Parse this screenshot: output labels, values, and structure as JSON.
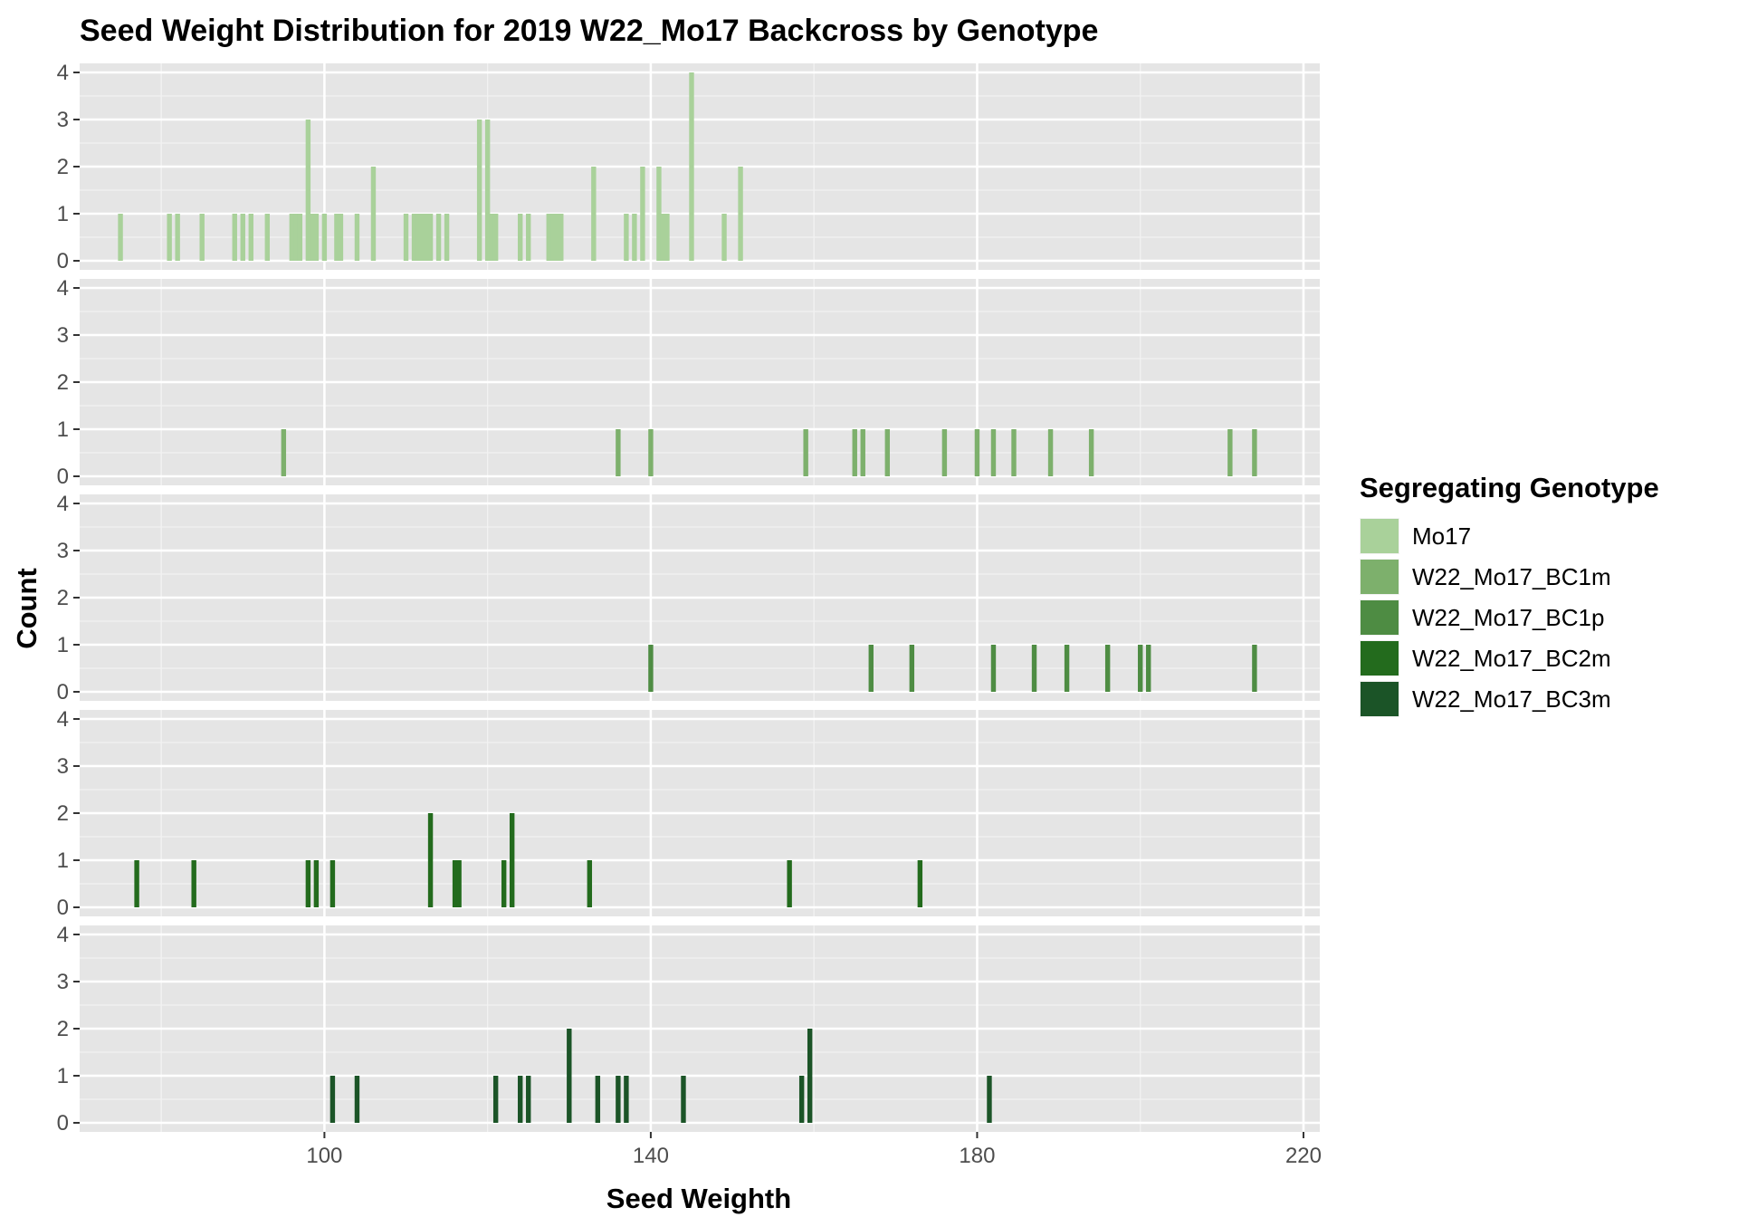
{
  "chart_data": {
    "type": "bar",
    "title": "Seed Weight Distribution for 2019 W22_Mo17 Backcross by Genotype",
    "xlabel": "Seed Weighth",
    "ylabel": "Count",
    "xlim": [
      70,
      222
    ],
    "ylim": [
      0,
      4
    ],
    "x_ticks": [
      100,
      140,
      180,
      220
    ],
    "y_ticks": [
      0,
      1,
      2,
      3,
      4
    ],
    "bin_width": 0.6,
    "grid": true,
    "legend": {
      "title": "Segregating Genotype",
      "position": "right"
    },
    "series": [
      {
        "name": "Mo17",
        "color": "#a9d19a",
        "x": [
          75,
          81,
          82,
          85,
          89,
          90,
          91,
          93,
          96,
          96.5,
          97,
          98,
          98.5,
          99,
          100,
          101.5,
          102,
          104,
          106,
          110,
          111,
          111.5,
          112,
          112.5,
          113,
          114,
          115,
          119,
          120,
          120.5,
          121,
          124,
          125,
          127.5,
          128,
          128.5,
          129,
          133,
          137,
          138,
          139,
          141,
          141.5,
          142,
          145,
          149,
          151
        ],
        "values": [
          1,
          1,
          1,
          1,
          1,
          1,
          1,
          1,
          1,
          1,
          1,
          3,
          1,
          1,
          1,
          1,
          1,
          1,
          2,
          1,
          1,
          1,
          1,
          1,
          1,
          1,
          1,
          3,
          3,
          1,
          1,
          1,
          1,
          1,
          1,
          1,
          1,
          2,
          1,
          1,
          2,
          2,
          1,
          1,
          4,
          1,
          2
        ]
      },
      {
        "name": "W22_Mo17_BC1m",
        "color": "#7db06c",
        "x": [
          95,
          136,
          140,
          159,
          165,
          166,
          169,
          176,
          180,
          182,
          184.5,
          189,
          194,
          211,
          214
        ],
        "values": [
          1,
          1,
          1,
          1,
          1,
          1,
          1,
          1,
          1,
          1,
          1,
          1,
          1,
          1,
          1
        ]
      },
      {
        "name": "W22_Mo17_BC1p",
        "color": "#4e8c43",
        "x": [
          140,
          167,
          172,
          182,
          187,
          191,
          196,
          200,
          201,
          214
        ],
        "values": [
          1,
          1,
          1,
          1,
          1,
          1,
          1,
          1,
          1,
          1
        ]
      },
      {
        "name": "W22_Mo17_BC2m",
        "color": "#236b1d",
        "x": [
          77,
          84,
          98,
          99,
          101,
          113,
          116,
          116.5,
          122,
          123,
          132.5,
          157,
          173
        ],
        "values": [
          1,
          1,
          1,
          1,
          1,
          2,
          1,
          1,
          1,
          2,
          1,
          1,
          1
        ]
      },
      {
        "name": "W22_Mo17_BC3m",
        "color": "#1b5427",
        "x": [
          101,
          104,
          121,
          124,
          125,
          130,
          133.5,
          136,
          137,
          144,
          158.5,
          159.5,
          181.5
        ],
        "values": [
          1,
          1,
          1,
          1,
          1,
          2,
          1,
          1,
          1,
          1,
          1,
          2,
          1
        ]
      }
    ]
  }
}
